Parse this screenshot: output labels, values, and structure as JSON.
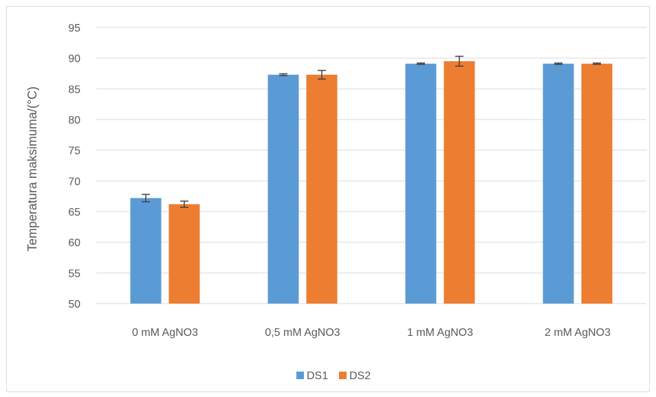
{
  "chart_data": {
    "type": "bar",
    "title": "",
    "xlabel": "",
    "ylabel": "Temperatura maksimuma/(°C)",
    "ylim": [
      50,
      95
    ],
    "yticks": [
      50,
      55,
      60,
      65,
      70,
      75,
      80,
      85,
      90,
      95
    ],
    "grid": true,
    "legend_position": "bottom",
    "categories": [
      "0 mM AgNO3",
      "0,5 mM AgNO3",
      "1 mM AgNO3",
      "2 mM AgNO3"
    ],
    "series": [
      {
        "name": "DS1",
        "color": "#5b9bd5",
        "values": [
          67.2,
          87.3,
          89.1,
          89.1
        ],
        "errors": [
          0.6,
          0.15,
          0.1,
          0.1
        ]
      },
      {
        "name": "DS2",
        "color": "#ed7d31",
        "values": [
          66.2,
          87.3,
          89.5,
          89.1
        ],
        "errors": [
          0.5,
          0.7,
          0.8,
          0.1
        ]
      }
    ]
  }
}
